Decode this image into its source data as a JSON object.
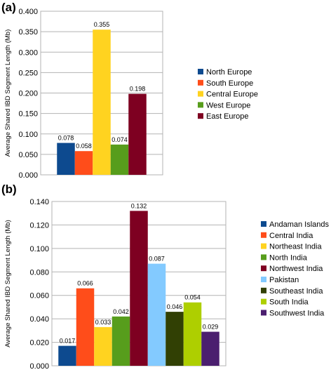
{
  "chart_data": [
    {
      "type": "bar",
      "panel_label": "(a)",
      "ylabel": "Average Shared IBD Segment Length (Mb)",
      "ylim": [
        0,
        0.4
      ],
      "yticks": [
        "0.000",
        "0.050",
        "0.100",
        "0.150",
        "0.200",
        "0.250",
        "0.300",
        "0.350",
        "0.400"
      ],
      "grid": true,
      "legend_position": "right",
      "categories": [
        "North Europe",
        "South Europe",
        "Central Europe",
        "West Europe",
        "East Europe"
      ],
      "values": [
        0.078,
        0.058,
        0.355,
        0.074,
        0.198
      ],
      "data_labels": [
        "0.078",
        "0.058",
        "0.355",
        "0.074",
        "0.198"
      ],
      "colors": [
        "#0d4a8f",
        "#ff4d1a",
        "#ffd320",
        "#579d1c",
        "#7e0021"
      ]
    },
    {
      "type": "bar",
      "panel_label": "(b)",
      "ylabel": "Average Shared IBD Segment Length (Mb)",
      "ylim": [
        0,
        0.14
      ],
      "yticks": [
        "0.000",
        "0.020",
        "0.040",
        "0.060",
        "0.080",
        "0.100",
        "0.120",
        "0.140"
      ],
      "grid": true,
      "legend_position": "right",
      "categories": [
        "Andaman Islands",
        "Central India",
        "Northeast India",
        "North India",
        "Northwest India",
        "Pakistan",
        "Southeast India",
        "South India",
        "Southwest India"
      ],
      "values": [
        0.017,
        0.066,
        0.033,
        0.042,
        0.132,
        0.087,
        0.046,
        0.054,
        0.029
      ],
      "data_labels": [
        "0.017",
        "0.066",
        "0.033",
        "0.042",
        "0.132",
        "0.087",
        "0.046",
        "0.054",
        "0.029"
      ],
      "colors": [
        "#0d4a8f",
        "#ff4d1a",
        "#ffd320",
        "#579d1c",
        "#7e0021",
        "#83caff",
        "#314004",
        "#aecf00",
        "#4b1f6f"
      ]
    }
  ]
}
